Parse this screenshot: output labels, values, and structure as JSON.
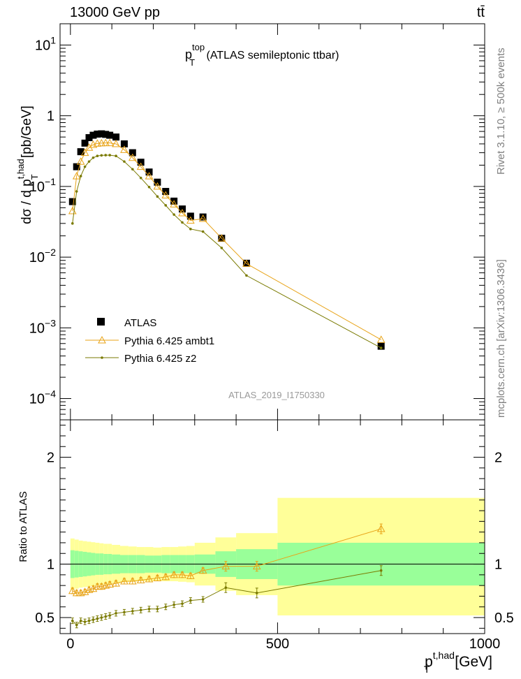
{
  "header": {
    "energy_label": "13000 GeV pp",
    "process_label": "tt̄"
  },
  "side_labels": {
    "rivet": "Rivet 3.1.10, ≥ 500k events",
    "source": "mcplots.cern.ch [arXiv:1306.3436]"
  },
  "chart_data": [
    {
      "type": "scatter",
      "panel": "main",
      "title": {
        "main": "p",
        "sup": "top",
        "sub": "T",
        "rest": " (ATLAS semileptonic ttbar)"
      },
      "ylabel": {
        "prefix": "dσ / d p",
        "sup": "t,had",
        "sub": "T",
        "suffix": " [pb/GeV]"
      },
      "yscale": "log",
      "ylim": [
        5e-05,
        20
      ],
      "xlim": [
        -25,
        1000
      ],
      "y_tick_labels": [
        {
          "base": "10",
          "exp": "1",
          "v": 10
        },
        {
          "base": "1",
          "exp": "",
          "v": 1
        },
        {
          "base": "10",
          "exp": "−1",
          "v": 0.1
        },
        {
          "base": "10",
          "exp": "−2",
          "v": 0.01
        },
        {
          "base": "10",
          "exp": "−3",
          "v": 0.001
        },
        {
          "base": "10",
          "exp": "−4",
          "v": 0.0001
        }
      ],
      "analysis_label": "ATLAS_2019_I1750330",
      "legend": [
        "ATLAS",
        "Pythia 6.425 ambt1",
        "Pythia 6.425 z2"
      ],
      "legend_placement": "bottom-left",
      "series": [
        {
          "name": "ATLAS",
          "color": "#000000",
          "marker": "square",
          "x": [
            5,
            15,
            25,
            35,
            45,
            55,
            65,
            75,
            85,
            95,
            110,
            130,
            150,
            170,
            190,
            210,
            230,
            250,
            270,
            290,
            320,
            365,
            425,
            750
          ],
          "y": [
            0.061,
            0.19,
            0.31,
            0.41,
            0.49,
            0.53,
            0.55,
            0.555,
            0.545,
            0.53,
            0.5,
            0.4,
            0.3,
            0.22,
            0.16,
            0.115,
            0.085,
            0.062,
            0.048,
            0.038,
            0.037,
            0.0185,
            0.0082,
            0.00055
          ]
        },
        {
          "name": "Pythia 6.425 ambt1",
          "color": "#e8a317",
          "marker": "triangle-open",
          "x": [
            5,
            15,
            25,
            35,
            45,
            55,
            65,
            75,
            85,
            95,
            110,
            130,
            150,
            170,
            190,
            210,
            230,
            250,
            270,
            290,
            320,
            365,
            425,
            750
          ],
          "y": [
            0.045,
            0.14,
            0.225,
            0.3,
            0.355,
            0.39,
            0.405,
            0.41,
            0.412,
            0.412,
            0.4,
            0.33,
            0.255,
            0.19,
            0.14,
            0.1,
            0.075,
            0.056,
            0.042,
            0.033,
            0.035,
            0.0185,
            0.0081,
            0.00068
          ]
        },
        {
          "name": "Pythia 6.425 z2",
          "color": "#7a7a00",
          "marker": "dot",
          "x": [
            5,
            15,
            25,
            35,
            45,
            55,
            65,
            75,
            85,
            95,
            110,
            130,
            150,
            170,
            190,
            210,
            230,
            250,
            270,
            290,
            320,
            365,
            425,
            750
          ],
          "y": [
            0.03,
            0.085,
            0.14,
            0.19,
            0.225,
            0.255,
            0.27,
            0.275,
            0.277,
            0.277,
            0.27,
            0.225,
            0.175,
            0.132,
            0.098,
            0.072,
            0.054,
            0.04,
            0.031,
            0.025,
            0.023,
            0.0135,
            0.0055,
            0.00052
          ]
        }
      ]
    },
    {
      "type": "scatter",
      "panel": "ratio",
      "ylabel": "Ratio to ATLAS",
      "xlabel": {
        "base": "p",
        "sup": "t,had",
        "sub": "T",
        "suffix": " [GeV]"
      },
      "ylim": [
        0.35,
        2.35
      ],
      "xlim": [
        -25,
        1000
      ],
      "y_ticks": [
        0.5,
        1,
        2
      ],
      "y_tick_labels": [
        "0.5",
        "1",
        "2"
      ],
      "x_ticks": [
        0,
        500,
        1000
      ],
      "x_tick_labels": [
        "0",
        "500",
        "1000"
      ],
      "bands": {
        "edges": [
          0,
          10,
          20,
          30,
          40,
          50,
          60,
          70,
          80,
          90,
          100,
          120,
          140,
          160,
          180,
          200,
          220,
          240,
          260,
          280,
          300,
          350,
          400,
          500,
          1000
        ],
        "green_lo": [
          0.87,
          0.875,
          0.88,
          0.885,
          0.89,
          0.895,
          0.9,
          0.9,
          0.905,
          0.905,
          0.91,
          0.915,
          0.915,
          0.915,
          0.92,
          0.92,
          0.915,
          0.915,
          0.915,
          0.915,
          0.91,
          0.88,
          0.86,
          0.8
        ],
        "green_hi": [
          1.13,
          1.125,
          1.12,
          1.115,
          1.11,
          1.105,
          1.1,
          1.1,
          1.095,
          1.095,
          1.09,
          1.085,
          1.085,
          1.085,
          1.08,
          1.08,
          1.085,
          1.085,
          1.085,
          1.085,
          1.09,
          1.12,
          1.14,
          1.2
        ],
        "yellow_lo": [
          0.76,
          0.77,
          0.78,
          0.785,
          0.79,
          0.795,
          0.8,
          0.805,
          0.81,
          0.81,
          0.82,
          0.83,
          0.835,
          0.84,
          0.84,
          0.845,
          0.84,
          0.84,
          0.835,
          0.83,
          0.8,
          0.75,
          0.71,
          0.52
        ],
        "yellow_hi": [
          1.24,
          1.23,
          1.22,
          1.215,
          1.21,
          1.205,
          1.2,
          1.195,
          1.19,
          1.19,
          1.18,
          1.17,
          1.165,
          1.16,
          1.16,
          1.155,
          1.16,
          1.16,
          1.165,
          1.17,
          1.2,
          1.25,
          1.29,
          1.62
        ],
        "green_color": "#99ff99",
        "yellow_color": "#ffff99"
      },
      "series": [
        {
          "name": "Pythia 6.425 ambt1",
          "color": "#e8a317",
          "x": [
            5,
            15,
            25,
            35,
            45,
            55,
            65,
            75,
            85,
            95,
            110,
            130,
            150,
            170,
            190,
            210,
            230,
            250,
            270,
            290,
            320,
            375,
            450,
            750
          ],
          "y": [
            0.75,
            0.73,
            0.73,
            0.74,
            0.76,
            0.77,
            0.79,
            0.79,
            0.8,
            0.81,
            0.82,
            0.84,
            0.84,
            0.85,
            0.86,
            0.87,
            0.88,
            0.9,
            0.9,
            0.89,
            0.94,
            0.98,
            0.98,
            1.33
          ]
        },
        {
          "name": "Pythia 6.425 z2",
          "color": "#7a7a00",
          "x": [
            5,
            15,
            25,
            35,
            45,
            55,
            65,
            75,
            85,
            95,
            110,
            130,
            150,
            170,
            190,
            210,
            230,
            250,
            270,
            290,
            320,
            375,
            450,
            750
          ],
          "y": [
            0.47,
            0.43,
            0.47,
            0.46,
            0.47,
            0.48,
            0.49,
            0.5,
            0.51,
            0.52,
            0.54,
            0.55,
            0.56,
            0.57,
            0.58,
            0.58,
            0.6,
            0.62,
            0.63,
            0.66,
            0.67,
            0.78,
            0.73,
            0.94
          ]
        }
      ]
    }
  ]
}
